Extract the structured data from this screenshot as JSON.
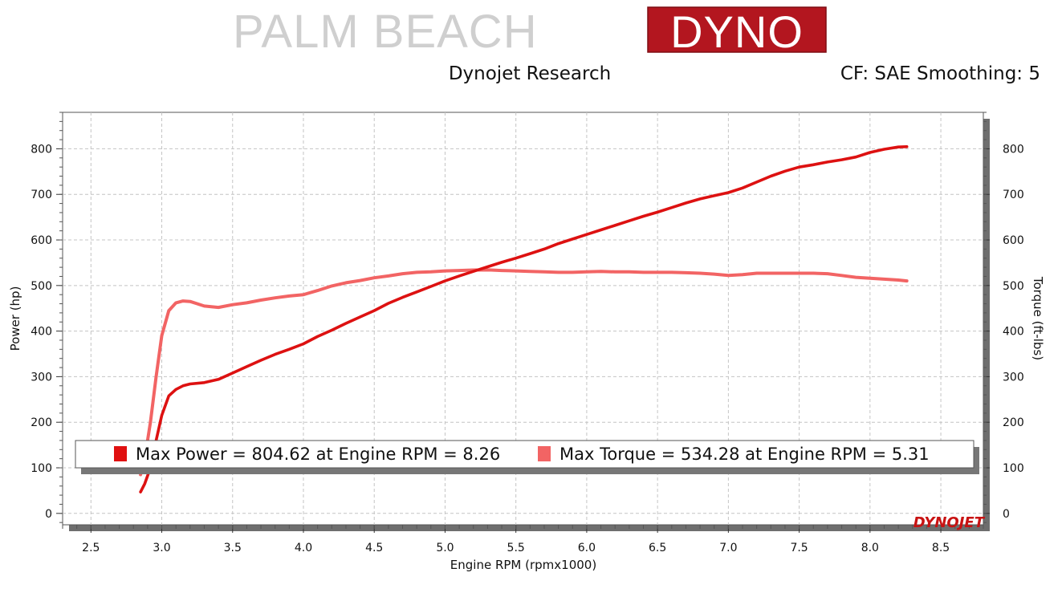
{
  "logo": {
    "left_text": "PALM BEACH",
    "right_text": "DYNO",
    "accent": "#b3161f"
  },
  "header": {
    "left": "Dynojet Research",
    "right": "CF: SAE Smoothing: 5"
  },
  "watermark": "DYNOJET",
  "chart_data": {
    "type": "line",
    "xlabel": "Engine RPM (rpmx1000)",
    "ylabel_left": "Power (hp)",
    "ylabel_right": "Torque (ft-lbs)",
    "xlim": [
      2.3,
      8.8
    ],
    "ylim": [
      -25,
      880
    ],
    "xticks": [
      "2.5",
      "3.0",
      "3.5",
      "4.0",
      "4.5",
      "5.0",
      "5.5",
      "6.0",
      "6.5",
      "7.0",
      "7.5",
      "8.0",
      "8.5"
    ],
    "yticks": [
      "0",
      "100",
      "200",
      "300",
      "400",
      "500",
      "600",
      "700",
      "800"
    ],
    "grid": true,
    "legend": {
      "placement": "bottom",
      "items": [
        {
          "label": "Max Power = 804.62 at Engine RPM = 8.26",
          "color": "#e01010"
        },
        {
          "label": "Max Torque = 534.28 at Engine RPM = 5.31",
          "color": "#f26464"
        }
      ]
    },
    "series": [
      {
        "axis": "left",
        "color": "#dd1111",
        "x": [
          2.85,
          2.88,
          2.92,
          2.96,
          3.0,
          3.05,
          3.1,
          3.15,
          3.2,
          3.3,
          3.4,
          3.5,
          3.6,
          3.7,
          3.8,
          3.9,
          4.0,
          4.1,
          4.2,
          4.3,
          4.4,
          4.5,
          4.6,
          4.7,
          4.8,
          4.9,
          5.0,
          5.1,
          5.2,
          5.3,
          5.4,
          5.5,
          5.6,
          5.7,
          5.8,
          5.9,
          6.0,
          6.1,
          6.2,
          6.3,
          6.4,
          6.5,
          6.6,
          6.7,
          6.8,
          6.9,
          7.0,
          7.1,
          7.2,
          7.3,
          7.4,
          7.5,
          7.6,
          7.7,
          7.8,
          7.9,
          8.0,
          8.1,
          8.2,
          8.26
        ],
        "values": [
          47,
          65,
          100,
          160,
          215,
          258,
          272,
          280,
          284,
          287,
          294,
          308,
          322,
          336,
          349,
          360,
          372,
          388,
          402,
          417,
          431,
          445,
          461,
          474,
          486,
          498,
          510,
          521,
          531,
          541,
          551,
          560,
          570,
          580,
          592,
          602,
          612,
          622,
          632,
          642,
          652,
          661,
          671,
          681,
          690,
          697,
          704,
          714,
          727,
          740,
          751,
          760,
          765,
          771,
          776,
          782,
          792,
          799,
          804,
          804.62
        ]
      },
      {
        "axis": "right",
        "color": "#f26464",
        "x": [
          2.85,
          2.88,
          2.92,
          2.96,
          3.0,
          3.05,
          3.1,
          3.15,
          3.2,
          3.25,
          3.3,
          3.4,
          3.5,
          3.6,
          3.7,
          3.8,
          3.9,
          4.0,
          4.1,
          4.2,
          4.3,
          4.4,
          4.5,
          4.6,
          4.7,
          4.8,
          4.9,
          5.0,
          5.1,
          5.2,
          5.31,
          5.4,
          5.5,
          5.6,
          5.7,
          5.8,
          5.9,
          6.0,
          6.1,
          6.2,
          6.3,
          6.4,
          6.5,
          6.6,
          6.7,
          6.8,
          6.9,
          7.0,
          7.1,
          7.2,
          7.3,
          7.4,
          7.5,
          7.6,
          7.7,
          7.8,
          7.9,
          8.0,
          8.1,
          8.2,
          8.26
        ],
        "values": [
          85,
          120,
          200,
          300,
          390,
          445,
          462,
          466,
          465,
          460,
          455,
          452,
          458,
          462,
          468,
          473,
          477,
          480,
          489,
          499,
          506,
          511,
          517,
          521,
          526,
          529,
          530,
          532,
          533,
          534,
          534.28,
          533,
          532,
          531,
          530,
          529,
          529,
          530,
          531,
          530,
          530,
          529,
          529,
          529,
          528,
          527,
          525,
          522,
          524,
          527,
          527,
          527,
          527,
          527,
          526,
          522,
          518,
          516,
          514,
          512,
          510
        ]
      }
    ]
  }
}
